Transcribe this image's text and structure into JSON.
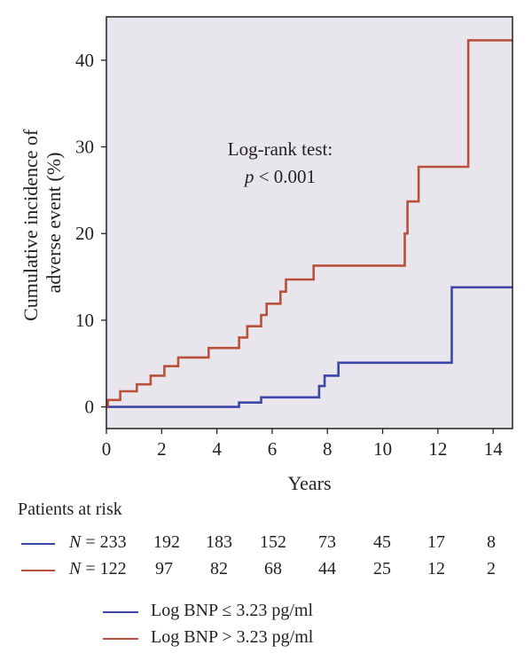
{
  "chart_data": {
    "type": "line",
    "xlabel": "Years",
    "ylabel": [
      "Cumulative incidence of",
      "adverse event (%)"
    ],
    "xlim": [
      0,
      14.7
    ],
    "ylim": [
      -2.5,
      45
    ],
    "xticks": [
      0,
      2,
      4,
      6,
      8,
      10,
      12,
      14
    ],
    "yticks": [
      0,
      10,
      20,
      30,
      40
    ],
    "background": "#e8e6ec",
    "annotation": {
      "line1": "Log-rank test:",
      "line2_italic": "p",
      "line2_rest": " < 0.001"
    },
    "series": [
      {
        "name": "Log BNP ≤ 3.23 pg/ml",
        "color": "#3b47a8",
        "points": [
          [
            0,
            0
          ],
          [
            4.8,
            0
          ],
          [
            4.8,
            0.5
          ],
          [
            5.6,
            0.5
          ],
          [
            5.6,
            1.1
          ],
          [
            7.7,
            1.1
          ],
          [
            7.7,
            2.4
          ],
          [
            7.9,
            2.4
          ],
          [
            7.9,
            3.6
          ],
          [
            8.4,
            3.6
          ],
          [
            8.4,
            5.1
          ],
          [
            12.5,
            5.1
          ],
          [
            12.5,
            13.8
          ],
          [
            14.7,
            13.8
          ]
        ]
      },
      {
        "name": "Log BNP > 3.23 pg/ml",
        "color": "#b8503b",
        "points": [
          [
            0,
            0
          ],
          [
            0.05,
            0
          ],
          [
            0.05,
            0.8
          ],
          [
            0.5,
            0.8
          ],
          [
            0.5,
            1.8
          ],
          [
            1.1,
            1.8
          ],
          [
            1.1,
            2.6
          ],
          [
            1.6,
            2.6
          ],
          [
            1.6,
            3.6
          ],
          [
            2.1,
            3.6
          ],
          [
            2.1,
            4.7
          ],
          [
            2.6,
            4.7
          ],
          [
            2.6,
            5.7
          ],
          [
            3.7,
            5.7
          ],
          [
            3.7,
            6.8
          ],
          [
            4.8,
            6.8
          ],
          [
            4.8,
            8.0
          ],
          [
            5.1,
            8.0
          ],
          [
            5.1,
            9.3
          ],
          [
            5.6,
            9.3
          ],
          [
            5.6,
            10.6
          ],
          [
            5.8,
            10.6
          ],
          [
            5.8,
            11.9
          ],
          [
            6.3,
            11.9
          ],
          [
            6.3,
            13.3
          ],
          [
            6.5,
            13.3
          ],
          [
            6.5,
            14.7
          ],
          [
            7.5,
            14.7
          ],
          [
            7.5,
            16.3
          ],
          [
            10.8,
            16.3
          ],
          [
            10.8,
            20.0
          ],
          [
            10.9,
            20.0
          ],
          [
            10.9,
            23.7
          ],
          [
            11.3,
            23.7
          ],
          [
            11.3,
            27.7
          ],
          [
            13.1,
            27.7
          ],
          [
            13.1,
            42.3
          ],
          [
            14.7,
            42.3
          ]
        ]
      }
    ]
  },
  "risk_table": {
    "title": "Patients at risk",
    "rows": [
      {
        "color": "#3b47a8",
        "n_label": "N",
        "n_rest": " = 233",
        "values": [
          "192",
          "183",
          "152",
          "73",
          "45",
          "17",
          "8"
        ]
      },
      {
        "color": "#b8503b",
        "n_label": "N",
        "n_rest": " = 122",
        "values": [
          "97",
          "82",
          "68",
          "44",
          "25",
          "12",
          "2"
        ]
      }
    ]
  },
  "legend": [
    {
      "color": "#3b47a8",
      "label": "Log BNP ≤ 3.23 pg/ml"
    },
    {
      "color": "#b8503b",
      "label": "Log BNP > 3.23 pg/ml"
    }
  ]
}
